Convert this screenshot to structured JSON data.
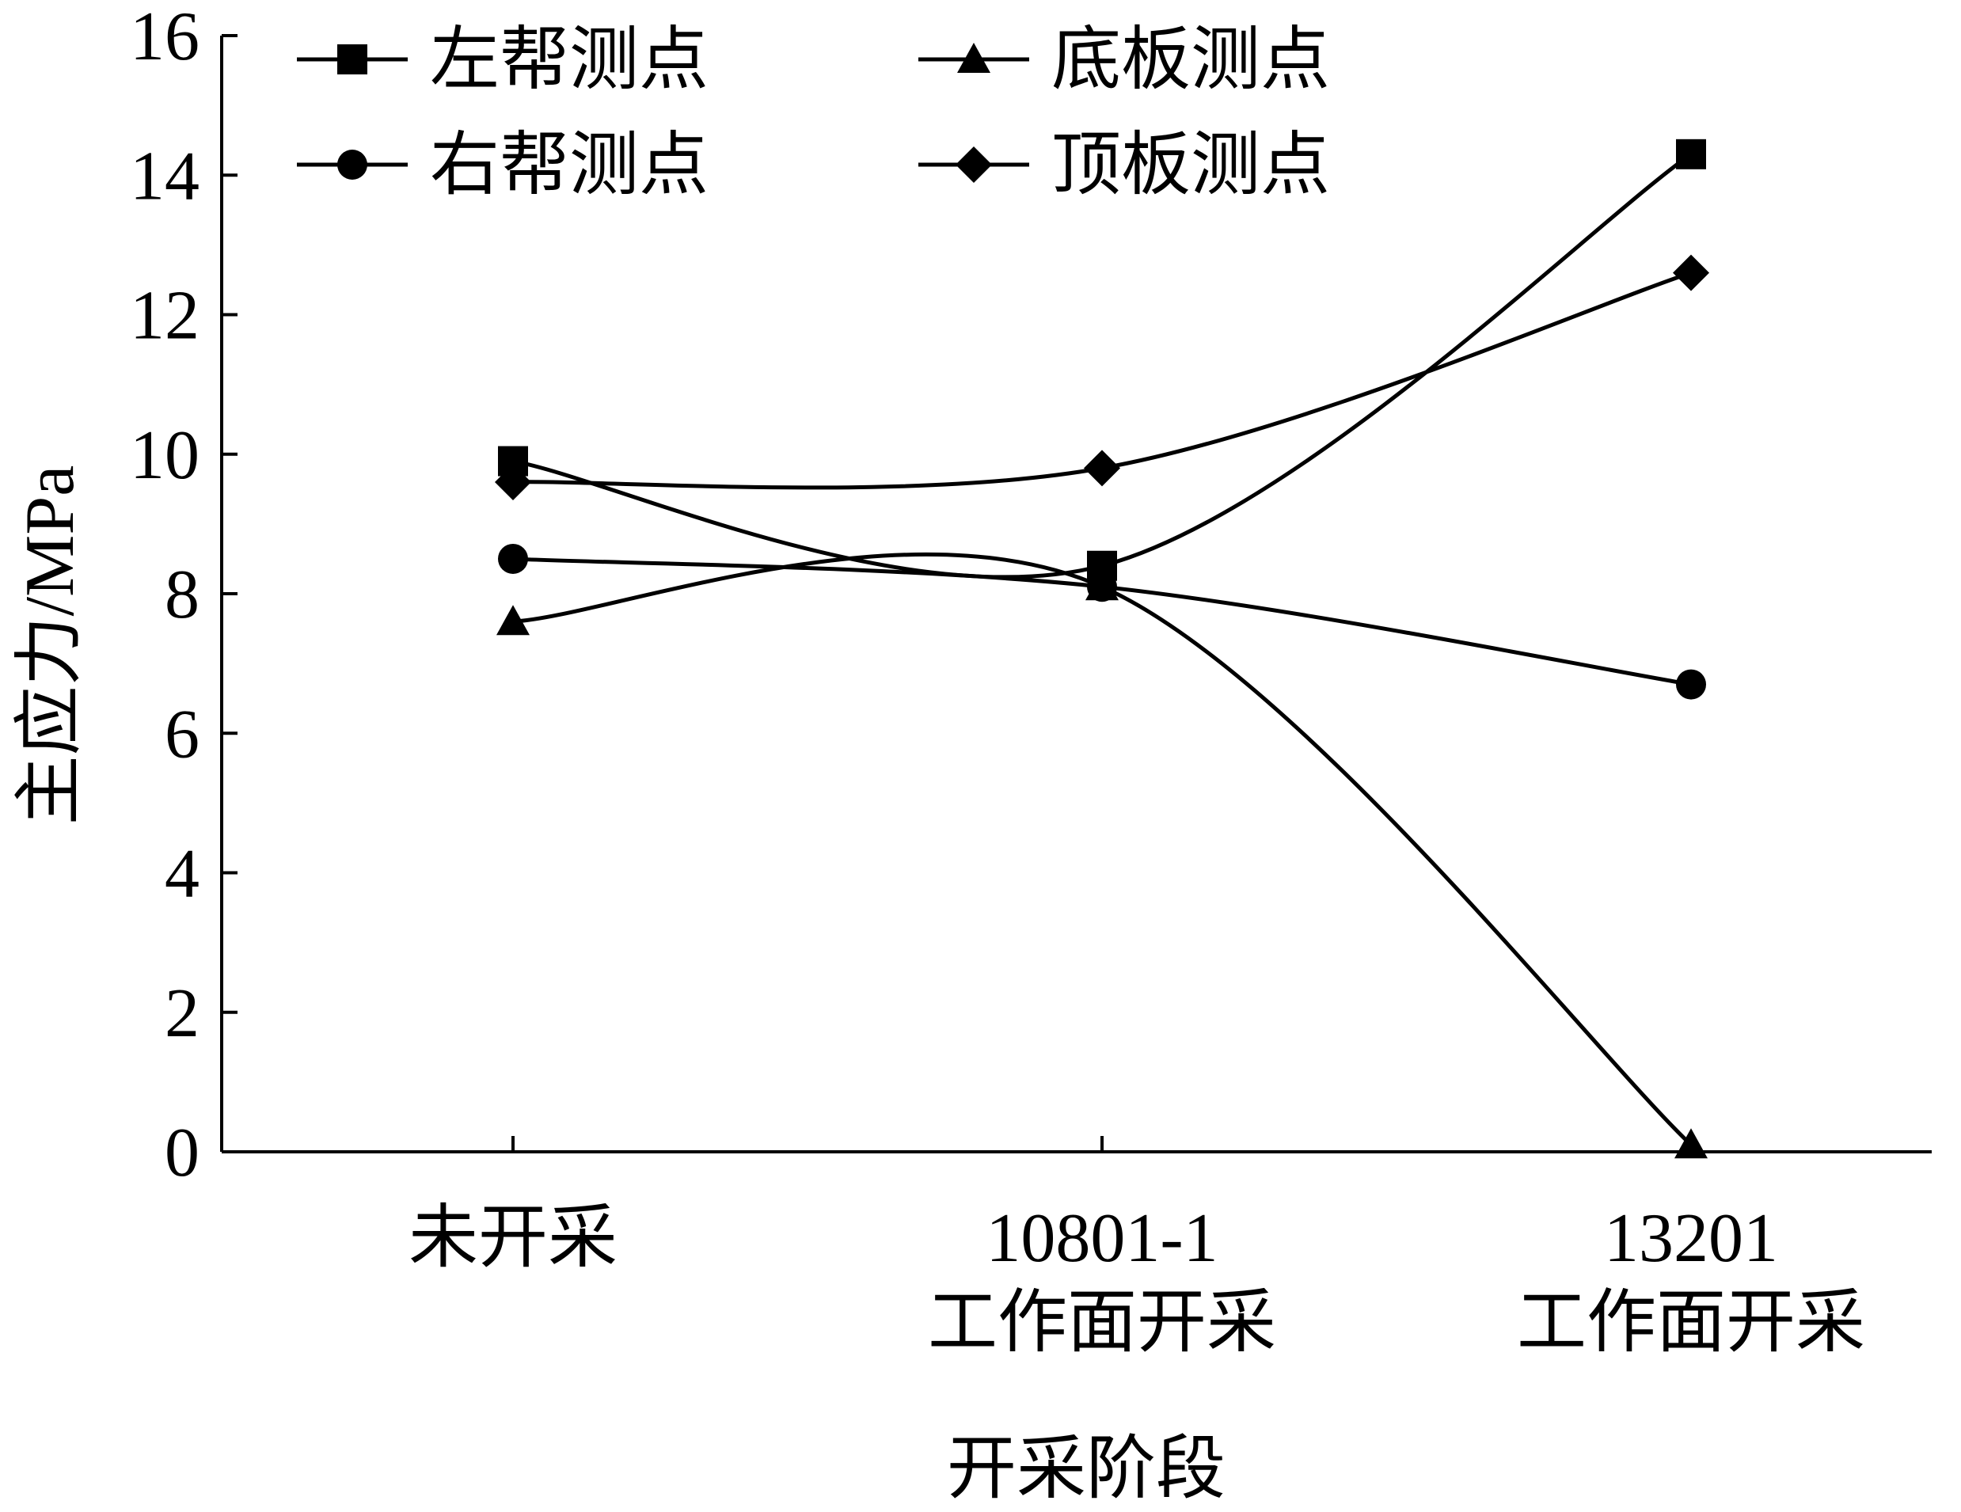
{
  "chart_data": {
    "type": "line",
    "title": "",
    "xlabel": "开采阶段",
    "ylabel": "主应力/MPa",
    "categories": [
      [
        "未开采"
      ],
      [
        "10801-1",
        "工作面开采"
      ],
      [
        "13201",
        "工作面开采"
      ]
    ],
    "ylim": [
      0,
      16
    ],
    "yticks": [
      0,
      2,
      4,
      6,
      8,
      10,
      12,
      14,
      16
    ],
    "grid": false,
    "legend_position": "top",
    "series": [
      {
        "name": "左帮测点",
        "marker": "square",
        "values": [
          9.9,
          8.4,
          14.3
        ]
      },
      {
        "name": "右帮测点",
        "marker": "circle",
        "values": [
          8.5,
          8.1,
          6.7
        ]
      },
      {
        "name": "底板测点",
        "marker": "triangle",
        "values": [
          7.6,
          8.1,
          0.1
        ]
      },
      {
        "name": "顶板测点",
        "marker": "diamond",
        "values": [
          9.6,
          9.8,
          12.6
        ]
      }
    ]
  }
}
